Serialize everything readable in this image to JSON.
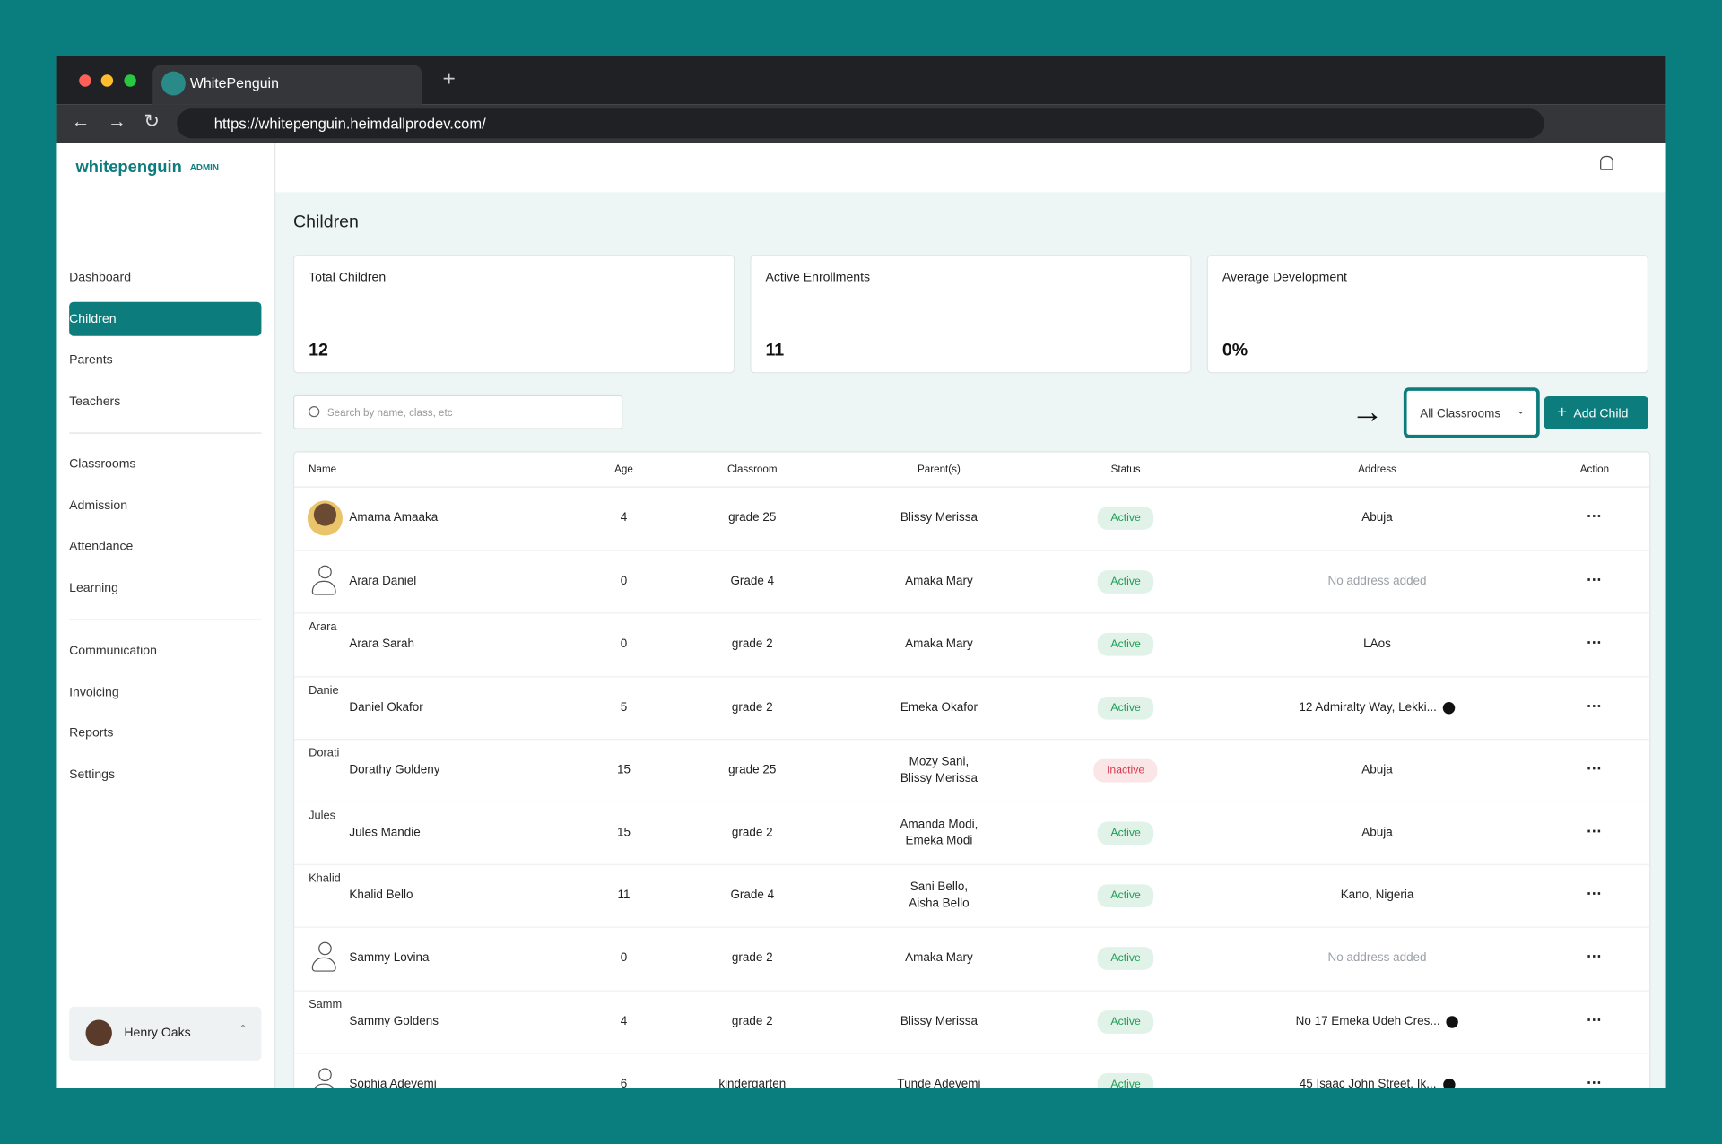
{
  "browser": {
    "tab_title": "WhitePenguin",
    "url": "https://whitepenguin.heimdallprodev.com/"
  },
  "sidebar": {
    "logo": "whitepenguin",
    "badge": "ADMIN",
    "groups": [
      [
        "Dashboard",
        "Children",
        "Parents",
        "Teachers"
      ],
      [
        "Classrooms",
        "Admission",
        "Attendance",
        "Learning"
      ],
      [
        "Communication",
        "Invoicing",
        "Reports",
        "Settings"
      ]
    ],
    "active": "Children",
    "user": "Henry Oaks"
  },
  "page": {
    "title": "Children",
    "cards": [
      {
        "label": "Total Children",
        "value": 12
      },
      {
        "label": "Active Enrollments",
        "value": 11
      },
      {
        "label": "Average Development",
        "value": "0%"
      }
    ],
    "search_placeholder": "Search by name, class, etc",
    "filter": "All Classrooms",
    "add_button": "Add Child"
  },
  "table": {
    "headers": [
      "Name",
      "Age",
      "Classroom",
      "Parent(s)",
      "Status",
      "Address",
      "Action"
    ],
    "rows": [
      {
        "avatar": "photo",
        "name": "Amama Amaaka",
        "age": 4,
        "classroom": "grade 25",
        "parents": [
          "Blissy Merissa"
        ],
        "status": "Active",
        "status_color": "#1f9d55",
        "address": "Abuja"
      },
      {
        "avatar": "icon",
        "name": "Arara Daniel",
        "age": 0,
        "classroom": "Grade 4",
        "parents": [
          "Amaka Mary"
        ],
        "status": "Active",
        "status_color": "#1f9d55",
        "address": "No address added",
        "address_color": "#9aa0a6"
      },
      {
        "avatar_alt": "Arara",
        "name": "Arara Sarah",
        "age": 0,
        "classroom": "grade 2",
        "parents": [
          "Amaka Mary"
        ],
        "status": "Active",
        "status_color": "#1f9d55",
        "address": "LAos"
      },
      {
        "avatar_alt": "Danie",
        "name": "Daniel Okafor",
        "age": 5,
        "classroom": "grade 2",
        "parents": [
          "Emeka Okafor"
        ],
        "status": "Active",
        "status_color": "#1f9d55",
        "address": "12 Admiralty Way, Lekki...",
        "address_info": true
      },
      {
        "avatar_alt": "Dorati",
        "name": "Dorathy Goldeny",
        "age": 15,
        "classroom": "grade 25",
        "parents": [
          "Mozy Sani,",
          "Blissy Merissa"
        ],
        "status": "Inactive",
        "status_color": "#d93a4a",
        "address": "Abuja"
      },
      {
        "avatar_alt": "Jules",
        "name": "Jules Mandie",
        "age": 15,
        "classroom": "grade 2",
        "parents": [
          "Amanda Modi,",
          "Emeka Modi"
        ],
        "status": "Active",
        "status_color": "#1f9d55",
        "address": "Abuja"
      },
      {
        "avatar_alt": "Khalid",
        "name": "Khalid Bello",
        "age": 11,
        "classroom": "Grade 4",
        "parents": [
          "Sani Bello,",
          "Aisha Bello"
        ],
        "status": "Active",
        "status_color": "#1f9d55",
        "address": "Kano, Nigeria"
      },
      {
        "avatar": "icon",
        "name": "Sammy Lovina",
        "age": 0,
        "classroom": "grade 2",
        "parents": [
          "Amaka Mary"
        ],
        "status": "Active",
        "status_color": "#1f9d55",
        "address": "No address added",
        "address_color": "#9aa0a6"
      },
      {
        "avatar_alt": "Samm",
        "name": "Sammy Goldens",
        "age": 4,
        "classroom": "grade 2",
        "parents": [
          "Blissy Merissa"
        ],
        "status": "Active",
        "status_color": "#1f9d55",
        "address": "No 17 Emeka Udeh Cres...",
        "address_info": true
      },
      {
        "avatar": "icon",
        "name": "Sophia Adeyemi",
        "age": 6,
        "classroom": "kindergarten",
        "parents": [
          "Tunde Adeyemi"
        ],
        "status": "Active",
        "status_color": "#1f9d55",
        "address": "45 Isaac John Street, Ik...",
        "address_info": true
      }
    ]
  }
}
